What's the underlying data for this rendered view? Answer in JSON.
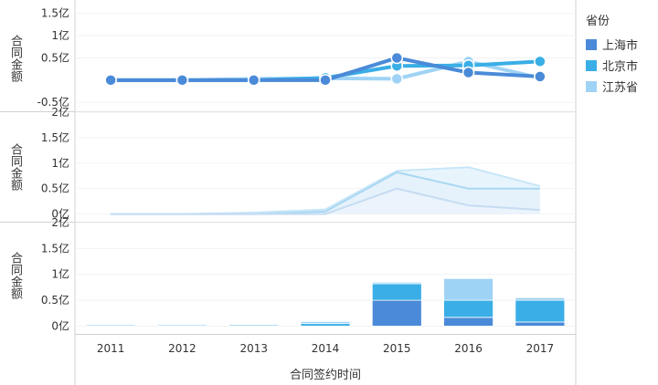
{
  "chart_data": {
    "type": "line",
    "x_label": "合同签约时间",
    "y_label": "合同金额",
    "categories": [
      "2011",
      "2012",
      "2013",
      "2014",
      "2015",
      "2016",
      "2017"
    ],
    "legend_title": "省份",
    "series": [
      {
        "name": "上海市",
        "color": "#4a8ad8",
        "values": [
          0.0,
          0.0,
          0.0,
          0.0,
          0.5,
          0.17,
          0.08
        ]
      },
      {
        "name": "北京市",
        "color": "#3aaee6",
        "values": [
          0.0,
          0.0,
          0.0,
          0.05,
          0.32,
          0.33,
          0.42
        ]
      },
      {
        "name": "江苏省",
        "color": "#9fd3f5",
        "values": [
          0.0,
          0.0,
          0.03,
          0.04,
          0.03,
          0.42,
          0.05
        ]
      }
    ],
    "panels": [
      {
        "type": "line",
        "ticks": [
          "1.5亿",
          "1亿",
          "0.5亿",
          "-0.5亿"
        ],
        "tick_values": [
          1.5,
          1.0,
          0.5,
          -0.5
        ],
        "ylim": [
          -0.7,
          1.8
        ]
      },
      {
        "type": "area",
        "ticks": [
          "2亿",
          "1.5亿",
          "1亿",
          "0.5亿",
          "0亿"
        ],
        "tick_values": [
          2,
          1.5,
          1,
          0.5,
          0
        ],
        "ylim": [
          -0.15,
          2.0
        ]
      },
      {
        "type": "stacked-bar",
        "ticks": [
          "2亿",
          "1.5亿",
          "1亿",
          "0.5亿",
          "0亿"
        ],
        "tick_values": [
          2,
          1.5,
          1,
          0.5,
          0
        ],
        "ylim": [
          -0.15,
          2.0
        ]
      }
    ]
  }
}
